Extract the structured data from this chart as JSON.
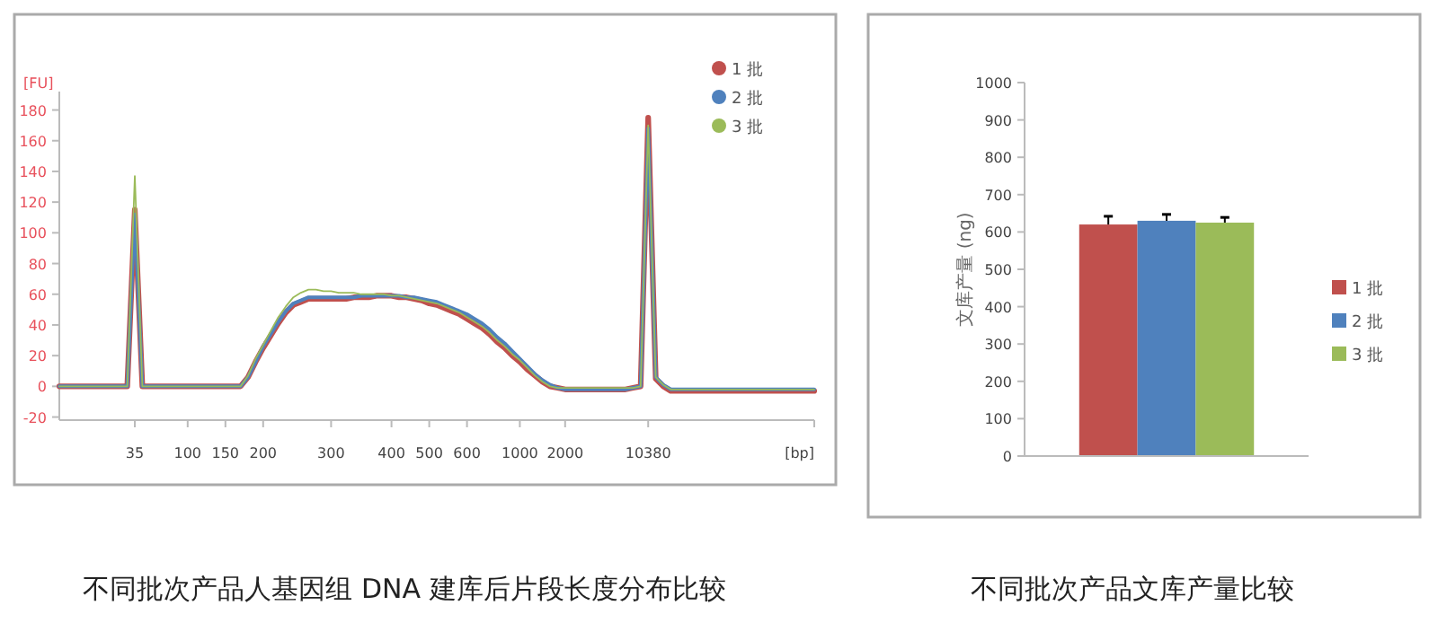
{
  "chart_data": [
    {
      "type": "line",
      "title": "不同批次产品人基因组 DNA 建库后片段长度分布比较",
      "ylabel": "[FU]",
      "xlabel": "[bp]",
      "categories": [
        null,
        null,
        null,
        null,
        null,
        null,
        null,
        null,
        null,
        null,
        "35",
        null,
        null,
        null,
        null,
        null,
        null,
        "100",
        null,
        null,
        null,
        null,
        "150",
        null,
        null,
        null,
        null,
        "200",
        null,
        null,
        null,
        null,
        null,
        null,
        null,
        null,
        "300",
        null,
        null,
        null,
        null,
        null,
        null,
        null,
        "400",
        null,
        null,
        null,
        null,
        "500",
        null,
        null,
        null,
        null,
        "600",
        null,
        null,
        null,
        null,
        null,
        null,
        "1000",
        null,
        null,
        null,
        null,
        null,
        "2000",
        null,
        null,
        null,
        null,
        null,
        null,
        null,
        null,
        null,
        null,
        "10380",
        null,
        null,
        null,
        null,
        null,
        null,
        null,
        null,
        null,
        null,
        null,
        null,
        null,
        null,
        null,
        null,
        null,
        null,
        null,
        null,
        null,
        null
      ],
      "ylim": [
        -22,
        192
      ],
      "yticks": [
        -20,
        0,
        20,
        40,
        60,
        80,
        100,
        120,
        140,
        160,
        180
      ],
      "grid": false,
      "legend": "top right",
      "marker": "none",
      "line_style": "solid",
      "series": [
        {
          "name": "1 批",
          "color": "#c0504d",
          "values": [
            0,
            0,
            0,
            0,
            0,
            0,
            0,
            0,
            0,
            0,
            115,
            0,
            0,
            0,
            0,
            0,
            0,
            0,
            0,
            0,
            0,
            0,
            0,
            0,
            0,
            6,
            16,
            25,
            33,
            41,
            48,
            53,
            55,
            57,
            57,
            57,
            57,
            57,
            57,
            58,
            58,
            58,
            59,
            59,
            59,
            58,
            58,
            57,
            56,
            54,
            53,
            51,
            49,
            47,
            44,
            41,
            38,
            34,
            29,
            25,
            20,
            16,
            11,
            7,
            3,
            0,
            -1,
            -2,
            -2,
            -2,
            -2,
            -2,
            -2,
            -2,
            -2,
            -2,
            -1,
            0,
            175,
            5,
            0,
            -3,
            -3,
            -3,
            -3,
            -3,
            -3,
            -3,
            -3,
            -3,
            -3,
            -3,
            -3,
            -3,
            -3,
            -3,
            -3,
            -3,
            -3,
            -3,
            -3
          ]
        },
        {
          "name": "2 批",
          "color": "#4f81bd",
          "values": [
            0,
            0,
            0,
            0,
            0,
            0,
            0,
            0,
            0,
            0,
            112,
            0,
            0,
            0,
            0,
            0,
            0,
            0,
            0,
            0,
            0,
            0,
            0,
            0,
            0,
            6,
            16,
            26,
            34,
            42,
            49,
            54,
            56,
            58,
            58,
            58,
            58,
            58,
            58,
            58,
            59,
            59,
            59,
            59,
            59,
            59,
            58,
            58,
            57,
            56,
            55,
            53,
            51,
            49,
            47,
            44,
            41,
            37,
            32,
            28,
            23,
            18,
            13,
            8,
            4,
            1,
            -1,
            -2,
            -2,
            -2,
            -2,
            -2,
            -2,
            -2,
            -2,
            -2,
            -1,
            0,
            168,
            6,
            1,
            -2,
            -2,
            -2,
            -2,
            -2,
            -2,
            -2,
            -2,
            -2,
            -2,
            -2,
            -2,
            -2,
            -2,
            -2,
            -2,
            -2,
            -2,
            -2,
            -2
          ]
        },
        {
          "name": "3 批",
          "color": "#9bbb59",
          "values": [
            0,
            0,
            0,
            0,
            0,
            0,
            0,
            0,
            0,
            0,
            137,
            0,
            0,
            0,
            0,
            0,
            0,
            0,
            0,
            0,
            0,
            0,
            0,
            0,
            0,
            7,
            18,
            27,
            36,
            45,
            52,
            58,
            61,
            63,
            63,
            62,
            62,
            61,
            61,
            61,
            60,
            60,
            60,
            60,
            59,
            59,
            58,
            57,
            56,
            55,
            54,
            52,
            50,
            48,
            45,
            42,
            39,
            35,
            30,
            26,
            21,
            17,
            12,
            7,
            3,
            0,
            -1,
            -1,
            -1,
            -1,
            -1,
            -1,
            -1,
            -1,
            -1,
            -1,
            -1,
            0,
            170,
            6,
            1,
            -2,
            -2,
            -2,
            -2,
            -2,
            -2,
            -2,
            -2,
            -2,
            -2,
            -2,
            -2,
            -2,
            -2,
            -2,
            -2,
            -2,
            -2,
            -2,
            -2
          ]
        }
      ]
    },
    {
      "type": "bar",
      "title": "不同批次产品文库产量比较",
      "ylabel": "文库产量 (ng)",
      "categories": [
        null
      ],
      "ylim": [
        0,
        1000
      ],
      "yticks": [
        0,
        100,
        200,
        300,
        400,
        500,
        600,
        700,
        800,
        900,
        1000
      ],
      "grid": false,
      "legend": "right",
      "tick_labels": "y",
      "series": [
        {
          "name": "1 批",
          "color": "#c0504d",
          "values": [
            620
          ],
          "errors": [
            [
              620,
              642
            ]
          ]
        },
        {
          "name": "2 批",
          "color": "#4f81bd",
          "values": [
            630
          ],
          "errors": [
            [
              630,
              647
            ]
          ]
        },
        {
          "name": "3 批",
          "color": "#9bbb59",
          "values": [
            625
          ],
          "errors": [
            [
              625,
              639
            ]
          ]
        }
      ]
    }
  ]
}
